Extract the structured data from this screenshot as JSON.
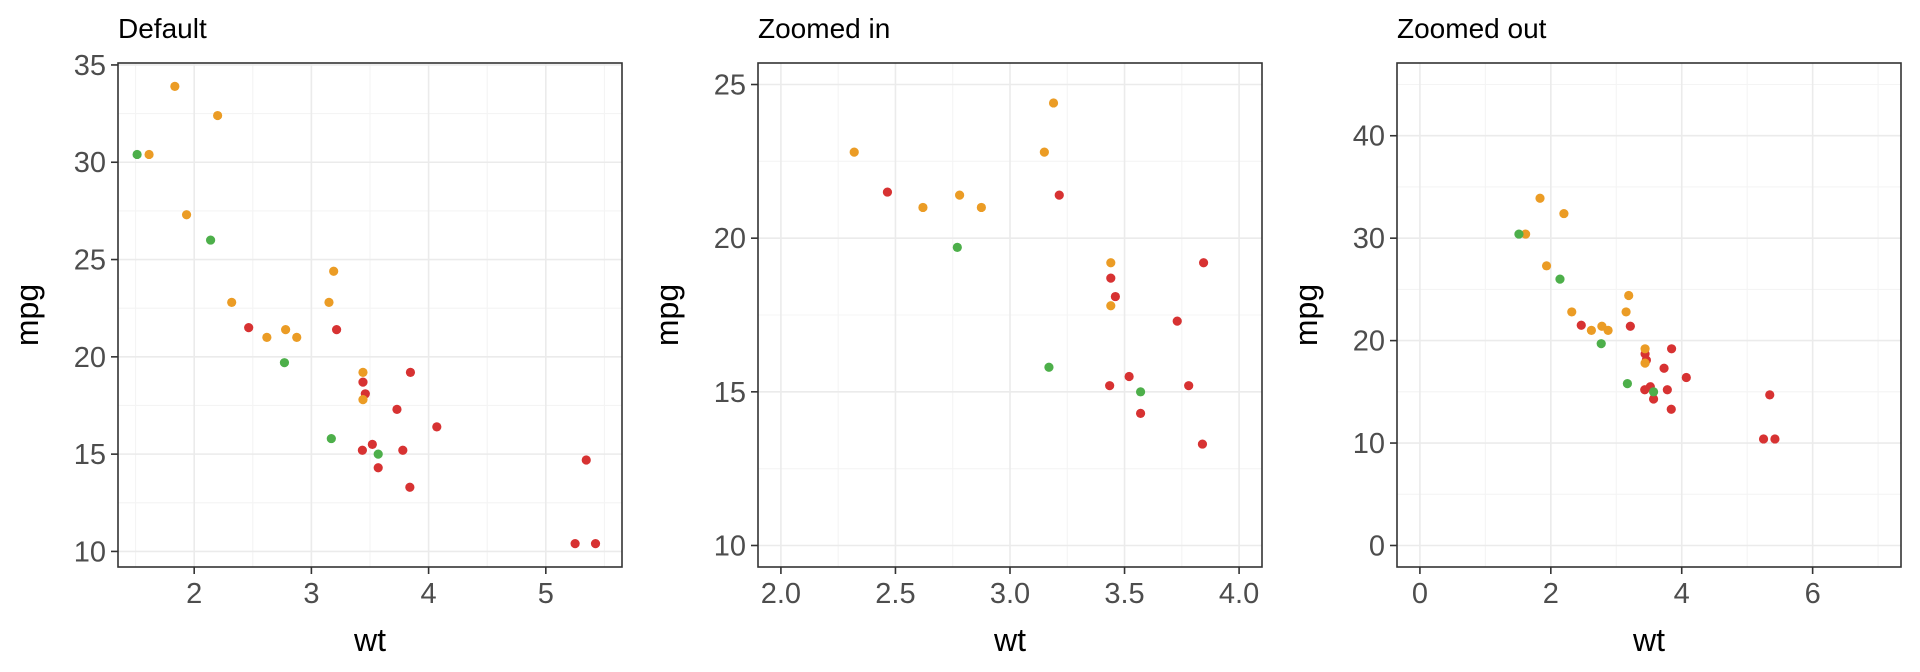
{
  "colors": {
    "red": "#d73232",
    "orange": "#eb9c25",
    "green": "#4daf4a"
  },
  "chart_data": [
    {
      "type": "scatter",
      "title": "Default",
      "xlabel": "wt",
      "ylabel": "mpg",
      "xlim": [
        1.35,
        5.65
      ],
      "ylim": [
        9.2,
        35.1
      ],
      "xticks": [
        2,
        3,
        4,
        5
      ],
      "xtick_labels": [
        "2",
        "3",
        "4",
        "5"
      ],
      "yticks": [
        10,
        15,
        20,
        25,
        30,
        35
      ],
      "ytick_labels": [
        "10",
        "15",
        "20",
        "25",
        "30",
        "35"
      ],
      "xminor": [
        1.5,
        2.5,
        3.5,
        4.5,
        5.5
      ],
      "yminor": [
        12.5,
        17.5,
        22.5,
        27.5,
        32.5
      ],
      "grid": true,
      "points": [
        {
          "x": 2.62,
          "y": 21.0,
          "c": "orange"
        },
        {
          "x": 2.875,
          "y": 21.0,
          "c": "orange"
        },
        {
          "x": 2.32,
          "y": 22.8,
          "c": "orange"
        },
        {
          "x": 3.215,
          "y": 21.4,
          "c": "red"
        },
        {
          "x": 3.44,
          "y": 18.7,
          "c": "red"
        },
        {
          "x": 3.46,
          "y": 18.1,
          "c": "red"
        },
        {
          "x": 3.57,
          "y": 14.3,
          "c": "red"
        },
        {
          "x": 3.19,
          "y": 24.4,
          "c": "orange"
        },
        {
          "x": 3.15,
          "y": 22.8,
          "c": "orange"
        },
        {
          "x": 3.44,
          "y": 19.2,
          "c": "orange"
        },
        {
          "x": 3.44,
          "y": 17.8,
          "c": "orange"
        },
        {
          "x": 4.07,
          "y": 16.4,
          "c": "red"
        },
        {
          "x": 3.73,
          "y": 17.3,
          "c": "red"
        },
        {
          "x": 3.78,
          "y": 15.2,
          "c": "red"
        },
        {
          "x": 5.25,
          "y": 10.4,
          "c": "red"
        },
        {
          "x": 5.424,
          "y": 10.4,
          "c": "red"
        },
        {
          "x": 5.345,
          "y": 14.7,
          "c": "red"
        },
        {
          "x": 2.2,
          "y": 32.4,
          "c": "orange"
        },
        {
          "x": 1.615,
          "y": 30.4,
          "c": "orange"
        },
        {
          "x": 1.835,
          "y": 33.9,
          "c": "orange"
        },
        {
          "x": 2.465,
          "y": 21.5,
          "c": "red"
        },
        {
          "x": 3.52,
          "y": 15.5,
          "c": "red"
        },
        {
          "x": 3.435,
          "y": 15.2,
          "c": "red"
        },
        {
          "x": 3.84,
          "y": 13.3,
          "c": "red"
        },
        {
          "x": 3.845,
          "y": 19.2,
          "c": "red"
        },
        {
          "x": 1.935,
          "y": 27.3,
          "c": "orange"
        },
        {
          "x": 2.14,
          "y": 26.0,
          "c": "green"
        },
        {
          "x": 1.513,
          "y": 30.4,
          "c": "green"
        },
        {
          "x": 3.17,
          "y": 15.8,
          "c": "green"
        },
        {
          "x": 2.77,
          "y": 19.7,
          "c": "green"
        },
        {
          "x": 3.57,
          "y": 15.0,
          "c": "green"
        },
        {
          "x": 2.78,
          "y": 21.4,
          "c": "orange"
        }
      ]
    },
    {
      "type": "scatter",
      "title": "Zoomed in",
      "xlabel": "wt",
      "ylabel": "mpg",
      "xlim": [
        1.9,
        4.1
      ],
      "ylim": [
        9.3,
        25.7
      ],
      "xticks": [
        2.0,
        2.5,
        3.0,
        3.5,
        4.0
      ],
      "xtick_labels": [
        "2.0",
        "2.5",
        "3.0",
        "3.5",
        "4.0"
      ],
      "yticks": [
        10,
        15,
        20,
        25
      ],
      "ytick_labels": [
        "10",
        "15",
        "20",
        "25"
      ],
      "xminor": [
        2.25,
        2.75,
        3.25,
        3.75
      ],
      "yminor": [
        12.5,
        17.5,
        22.5
      ],
      "grid": true,
      "points": [
        {
          "x": 2.62,
          "y": 21.0,
          "c": "orange"
        },
        {
          "x": 2.875,
          "y": 21.0,
          "c": "orange"
        },
        {
          "x": 2.32,
          "y": 22.8,
          "c": "orange"
        },
        {
          "x": 3.215,
          "y": 21.4,
          "c": "red"
        },
        {
          "x": 3.44,
          "y": 18.7,
          "c": "red"
        },
        {
          "x": 3.46,
          "y": 18.1,
          "c": "red"
        },
        {
          "x": 3.57,
          "y": 14.3,
          "c": "red"
        },
        {
          "x": 3.19,
          "y": 24.4,
          "c": "orange"
        },
        {
          "x": 3.15,
          "y": 22.8,
          "c": "orange"
        },
        {
          "x": 3.44,
          "y": 19.2,
          "c": "orange"
        },
        {
          "x": 3.44,
          "y": 17.8,
          "c": "orange"
        },
        {
          "x": 3.73,
          "y": 17.3,
          "c": "red"
        },
        {
          "x": 3.78,
          "y": 15.2,
          "c": "red"
        },
        {
          "x": 2.465,
          "y": 21.5,
          "c": "red"
        },
        {
          "x": 3.52,
          "y": 15.5,
          "c": "red"
        },
        {
          "x": 3.435,
          "y": 15.2,
          "c": "red"
        },
        {
          "x": 3.84,
          "y": 13.3,
          "c": "red"
        },
        {
          "x": 3.845,
          "y": 19.2,
          "c": "red"
        },
        {
          "x": 3.17,
          "y": 15.8,
          "c": "green"
        },
        {
          "x": 2.77,
          "y": 19.7,
          "c": "green"
        },
        {
          "x": 3.57,
          "y": 15.0,
          "c": "green"
        },
        {
          "x": 2.78,
          "y": 21.4,
          "c": "orange"
        }
      ]
    },
    {
      "type": "scatter",
      "title": "Zoomed out",
      "xlabel": "wt",
      "ylabel": "mpg",
      "xlim": [
        -0.35,
        7.35
      ],
      "ylim": [
        -2.1,
        47.1
      ],
      "xticks": [
        0,
        2,
        4,
        6
      ],
      "xtick_labels": [
        "0",
        "2",
        "4",
        "6"
      ],
      "yticks": [
        0,
        10,
        20,
        30,
        40
      ],
      "ytick_labels": [
        "0",
        "10",
        "20",
        "30",
        "40"
      ],
      "xminor": [
        1,
        3,
        5,
        7
      ],
      "yminor": [
        5,
        15,
        25,
        35,
        45
      ],
      "grid": true,
      "points": [
        {
          "x": 2.62,
          "y": 21.0,
          "c": "orange"
        },
        {
          "x": 2.875,
          "y": 21.0,
          "c": "orange"
        },
        {
          "x": 2.32,
          "y": 22.8,
          "c": "orange"
        },
        {
          "x": 3.215,
          "y": 21.4,
          "c": "red"
        },
        {
          "x": 3.44,
          "y": 18.7,
          "c": "red"
        },
        {
          "x": 3.46,
          "y": 18.1,
          "c": "red"
        },
        {
          "x": 3.57,
          "y": 14.3,
          "c": "red"
        },
        {
          "x": 3.19,
          "y": 24.4,
          "c": "orange"
        },
        {
          "x": 3.15,
          "y": 22.8,
          "c": "orange"
        },
        {
          "x": 3.44,
          "y": 19.2,
          "c": "orange"
        },
        {
          "x": 3.44,
          "y": 17.8,
          "c": "orange"
        },
        {
          "x": 4.07,
          "y": 16.4,
          "c": "red"
        },
        {
          "x": 3.73,
          "y": 17.3,
          "c": "red"
        },
        {
          "x": 3.78,
          "y": 15.2,
          "c": "red"
        },
        {
          "x": 5.25,
          "y": 10.4,
          "c": "red"
        },
        {
          "x": 5.424,
          "y": 10.4,
          "c": "red"
        },
        {
          "x": 5.345,
          "y": 14.7,
          "c": "red"
        },
        {
          "x": 2.2,
          "y": 32.4,
          "c": "orange"
        },
        {
          "x": 1.615,
          "y": 30.4,
          "c": "orange"
        },
        {
          "x": 1.835,
          "y": 33.9,
          "c": "orange"
        },
        {
          "x": 2.465,
          "y": 21.5,
          "c": "red"
        },
        {
          "x": 3.52,
          "y": 15.5,
          "c": "red"
        },
        {
          "x": 3.435,
          "y": 15.2,
          "c": "red"
        },
        {
          "x": 3.84,
          "y": 13.3,
          "c": "red"
        },
        {
          "x": 3.845,
          "y": 19.2,
          "c": "red"
        },
        {
          "x": 1.935,
          "y": 27.3,
          "c": "orange"
        },
        {
          "x": 2.14,
          "y": 26.0,
          "c": "green"
        },
        {
          "x": 1.513,
          "y": 30.4,
          "c": "green"
        },
        {
          "x": 3.17,
          "y": 15.8,
          "c": "green"
        },
        {
          "x": 2.77,
          "y": 19.7,
          "c": "green"
        },
        {
          "x": 3.57,
          "y": 15.0,
          "c": "green"
        },
        {
          "x": 2.78,
          "y": 21.4,
          "c": "orange"
        }
      ]
    }
  ]
}
